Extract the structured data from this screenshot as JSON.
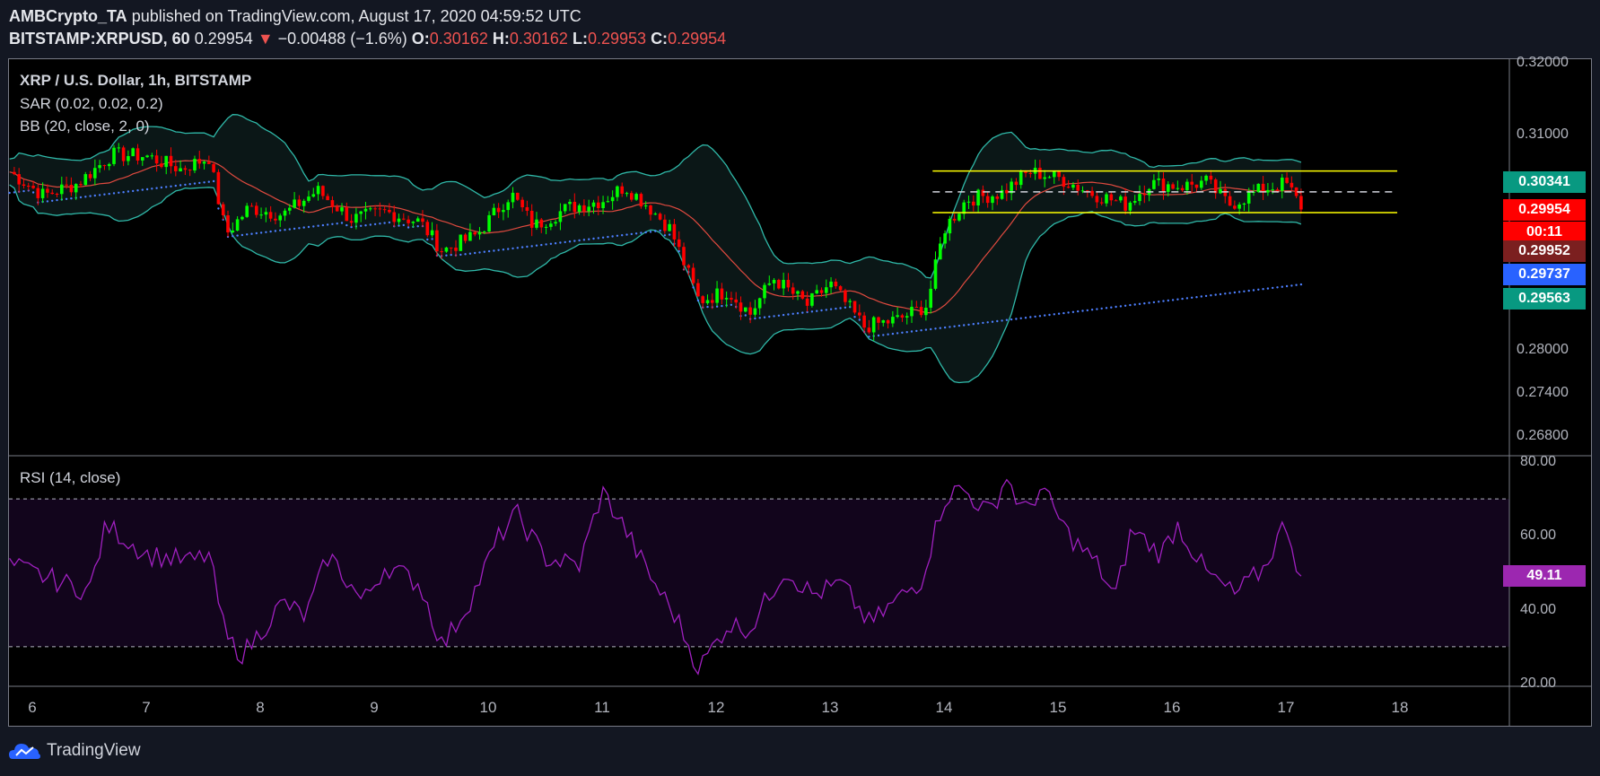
{
  "header": {
    "author": "AMBCrypto_TA",
    "published_text": "published on TradingView.com, August 17, 2020 04:59:52 UTC",
    "symbol": "BITSTAMP:XRPUSD, 60",
    "last": "0.29954",
    "change_arrow": "▼",
    "change": "−0.00488 (−1.6%)",
    "o_label": "O:",
    "o_value": "0.30162",
    "h_label": "H:",
    "h_value": "0.30162",
    "l_label": "L:",
    "l_value": "0.29953",
    "c_label": "C:",
    "c_value": "0.29954"
  },
  "legend": {
    "title": "XRP / U.S. Dollar, 1h, BITSTAMP",
    "sar": "SAR (0.02, 0.02, 0.2)",
    "bb": "BB (20, close, 2, 0)",
    "rsi": "RSI (14, close)"
  },
  "price_labels": [
    {
      "text": "0.30341",
      "value": 0.30341,
      "color": "#089981"
    },
    {
      "text": "0.29954",
      "value": 0.29954,
      "color": "#ff0000"
    },
    {
      "text": "00:11",
      "value": 0.29954,
      "color": "#ff0000"
    },
    {
      "text": "0.29952",
      "value": 0.29952,
      "color": "#7b1f1f"
    },
    {
      "text": "0.29737",
      "value": 0.29737,
      "color": "#2962ff"
    },
    {
      "text": "0.29563",
      "value": 0.29563,
      "color": "#089981"
    }
  ],
  "rsi_label": {
    "text": "49.11",
    "value": 49.11,
    "color": "#9c27b0"
  },
  "chart_data": {
    "type": "candlestick",
    "price_axis": {
      "ticks": [
        "0.32000",
        "0.31000",
        "0.30341",
        "0.28000",
        "0.27400",
        "0.26800"
      ],
      "tick_values": [
        0.32,
        0.31,
        0.28,
        0.274,
        0.268
      ],
      "tick_labels": [
        "0.32000",
        "0.31000",
        "0.28000",
        "0.27400",
        "0.26800"
      ],
      "range": [
        0.2652,
        0.3205
      ]
    },
    "rsi_axis": {
      "tick_values": [
        80,
        60,
        40,
        20
      ],
      "tick_labels": [
        "80.00",
        "60.00",
        "40.00",
        "20.00"
      ],
      "range": [
        20,
        80
      ],
      "bands": [
        70,
        30
      ]
    },
    "x_ticks": [
      "6",
      "7",
      "8",
      "9",
      "10",
      "11",
      "12",
      "13",
      "14",
      "15",
      "16",
      "17",
      "18"
    ],
    "channel": {
      "upper": 0.3049,
      "lower": 0.2991,
      "mid": 0.302,
      "start_day": 13.9,
      "end_day": 17.15
    },
    "close_series": [
      {
        "day": 5.8,
        "close": 0.3048
      },
      {
        "day": 6.1,
        "close": 0.3015
      },
      {
        "day": 6.4,
        "close": 0.3032
      },
      {
        "day": 6.7,
        "close": 0.3072
      },
      {
        "day": 7.0,
        "close": 0.307
      },
      {
        "day": 7.3,
        "close": 0.3052
      },
      {
        "day": 7.55,
        "close": 0.3068
      },
      {
        "day": 7.7,
        "close": 0.2961
      },
      {
        "day": 7.9,
        "close": 0.2998
      },
      {
        "day": 8.2,
        "close": 0.2988
      },
      {
        "day": 8.5,
        "close": 0.3022
      },
      {
        "day": 8.8,
        "close": 0.2982
      },
      {
        "day": 9.1,
        "close": 0.2992
      },
      {
        "day": 9.4,
        "close": 0.2978
      },
      {
        "day": 9.6,
        "close": 0.2938
      },
      {
        "day": 9.9,
        "close": 0.296
      },
      {
        "day": 10.2,
        "close": 0.3018
      },
      {
        "day": 10.4,
        "close": 0.2972
      },
      {
        "day": 10.7,
        "close": 0.2998
      },
      {
        "day": 11.0,
        "close": 0.3008
      },
      {
        "day": 11.2,
        "close": 0.3028
      },
      {
        "day": 11.4,
        "close": 0.3001
      },
      {
        "day": 11.6,
        "close": 0.2968
      },
      {
        "day": 11.85,
        "close": 0.2868
      },
      {
        "day": 12.1,
        "close": 0.2882
      },
      {
        "day": 12.3,
        "close": 0.285
      },
      {
        "day": 12.5,
        "close": 0.29
      },
      {
        "day": 12.8,
        "close": 0.2862
      },
      {
        "day": 13.0,
        "close": 0.2892
      },
      {
        "day": 13.3,
        "close": 0.2832
      },
      {
        "day": 13.6,
        "close": 0.2842
      },
      {
        "day": 13.85,
        "close": 0.2862
      },
      {
        "day": 14.0,
        "close": 0.2968
      },
      {
        "day": 14.2,
        "close": 0.301
      },
      {
        "day": 14.5,
        "close": 0.3018
      },
      {
        "day": 14.75,
        "close": 0.3048
      },
      {
        "day": 15.0,
        "close": 0.304
      },
      {
        "day": 15.3,
        "close": 0.3018
      },
      {
        "day": 15.6,
        "close": 0.3002
      },
      {
        "day": 15.8,
        "close": 0.3032
      },
      {
        "day": 16.1,
        "close": 0.3028
      },
      {
        "day": 16.3,
        "close": 0.3034
      },
      {
        "day": 16.5,
        "close": 0.3002
      },
      {
        "day": 16.8,
        "close": 0.3024
      },
      {
        "day": 17.0,
        "close": 0.3032
      },
      {
        "day": 17.15,
        "close": 0.29954
      }
    ],
    "rsi_series": [
      {
        "day": 5.8,
        "value": 52
      },
      {
        "day": 6.2,
        "value": 48
      },
      {
        "day": 6.5,
        "value": 45
      },
      {
        "day": 6.65,
        "value": 63
      },
      {
        "day": 7.0,
        "value": 55
      },
      {
        "day": 7.4,
        "value": 53
      },
      {
        "day": 7.55,
        "value": 55
      },
      {
        "day": 7.7,
        "value": 32
      },
      {
        "day": 7.85,
        "value": 28
      },
      {
        "day": 8.2,
        "value": 42
      },
      {
        "day": 8.4,
        "value": 38
      },
      {
        "day": 8.6,
        "value": 55
      },
      {
        "day": 8.9,
        "value": 42
      },
      {
        "day": 9.1,
        "value": 52
      },
      {
        "day": 9.4,
        "value": 47
      },
      {
        "day": 9.6,
        "value": 30
      },
      {
        "day": 9.85,
        "value": 43
      },
      {
        "day": 10.1,
        "value": 60
      },
      {
        "day": 10.25,
        "value": 66
      },
      {
        "day": 10.5,
        "value": 54
      },
      {
        "day": 10.8,
        "value": 52
      },
      {
        "day": 11.0,
        "value": 72
      },
      {
        "day": 11.2,
        "value": 62
      },
      {
        "day": 11.4,
        "value": 50
      },
      {
        "day": 11.65,
        "value": 38
      },
      {
        "day": 11.85,
        "value": 24
      },
      {
        "day": 12.1,
        "value": 36
      },
      {
        "day": 12.3,
        "value": 35
      },
      {
        "day": 12.6,
        "value": 51
      },
      {
        "day": 12.85,
        "value": 44
      },
      {
        "day": 13.1,
        "value": 47
      },
      {
        "day": 13.35,
        "value": 36
      },
      {
        "day": 13.6,
        "value": 43
      },
      {
        "day": 13.8,
        "value": 48
      },
      {
        "day": 14.0,
        "value": 70
      },
      {
        "day": 14.15,
        "value": 73
      },
      {
        "day": 14.4,
        "value": 66
      },
      {
        "day": 14.55,
        "value": 76
      },
      {
        "day": 14.7,
        "value": 66
      },
      {
        "day": 14.85,
        "value": 73
      },
      {
        "day": 15.1,
        "value": 60
      },
      {
        "day": 15.35,
        "value": 52
      },
      {
        "day": 15.5,
        "value": 43
      },
      {
        "day": 15.65,
        "value": 62
      },
      {
        "day": 15.9,
        "value": 55
      },
      {
        "day": 16.05,
        "value": 63
      },
      {
        "day": 16.3,
        "value": 50
      },
      {
        "day": 16.55,
        "value": 44
      },
      {
        "day": 16.8,
        "value": 51
      },
      {
        "day": 17.0,
        "value": 64
      },
      {
        "day": 17.1,
        "value": 52
      },
      {
        "day": 17.15,
        "value": 49.11
      }
    ],
    "colors": {
      "up": "#00ff00",
      "down": "#ff0000",
      "bb_band": "#2fb8a8",
      "bb_basis": "#e04a3f",
      "sar": "#4d7fff",
      "rsi": "#a020c0",
      "rsi_bg": "#12051c",
      "channel": "#ffff00"
    }
  },
  "footer": {
    "brand": "TradingView"
  }
}
